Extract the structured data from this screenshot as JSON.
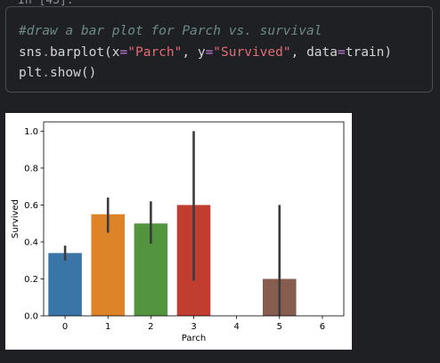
{
  "cell": {
    "prompt": "In [43]:",
    "lines": [
      [
        {
          "t": "#draw a bar plot for Parch vs. survival",
          "c": "cm"
        }
      ],
      [
        {
          "t": "sns",
          "c": "nm"
        },
        {
          "t": ".",
          "c": "dot"
        },
        {
          "t": "barplot(x",
          "c": "nm"
        },
        {
          "t": "=",
          "c": "op"
        },
        {
          "t": "\"Parch\"",
          "c": "str"
        },
        {
          "t": ", y",
          "c": "nm"
        },
        {
          "t": "=",
          "c": "op"
        },
        {
          "t": "\"Survived\"",
          "c": "str"
        },
        {
          "t": ", data",
          "c": "nm"
        },
        {
          "t": "=",
          "c": "op"
        },
        {
          "t": "train)",
          "c": "nm"
        }
      ],
      [
        {
          "t": "plt",
          "c": "nm"
        },
        {
          "t": ".",
          "c": "dot"
        },
        {
          "t": "show()",
          "c": "nm"
        }
      ]
    ]
  },
  "chart_data": {
    "type": "bar",
    "xlabel": "Parch",
    "ylabel": "Survived",
    "categories": [
      "0",
      "1",
      "2",
      "3",
      "4",
      "5",
      "6"
    ],
    "values": [
      0.34,
      0.55,
      0.5,
      0.6,
      null,
      0.2,
      null
    ],
    "ci_low": [
      0.3,
      0.45,
      0.39,
      0.19,
      null,
      0.0,
      null
    ],
    "ci_high": [
      0.38,
      0.64,
      0.62,
      1.0,
      null,
      0.6,
      null
    ],
    "colors": [
      "#3a75a8",
      "#dd8428",
      "#53953f",
      "#c03d2f",
      "#8b6fa9",
      "#875d4f",
      "#d97ab7"
    ],
    "ylim": [
      0,
      1.05
    ],
    "yticks": [
      0.0,
      0.2,
      0.4,
      0.6,
      0.8,
      1.0
    ],
    "ytick_labels": [
      "0.0",
      "0.2",
      "0.4",
      "0.6",
      "0.8",
      "1.0"
    ],
    "grid": false
  }
}
